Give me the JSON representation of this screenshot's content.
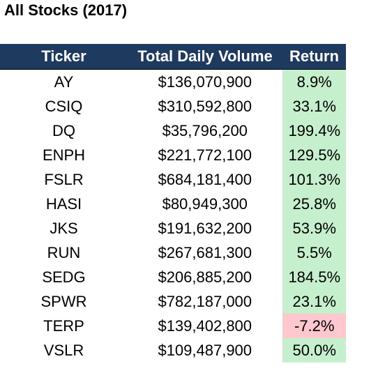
{
  "title": "All Stocks (2017)",
  "columns": [
    "Ticker",
    "Total Daily Volume",
    "Return"
  ],
  "colors": {
    "header_bg": "#1f3a5f",
    "header_text": "#ffffff",
    "positive_fill": "#c6efce",
    "negative_fill": "#ffc7ce"
  },
  "rows": [
    {
      "ticker": "AY",
      "volume": "$136,070,900",
      "return": "8.9%",
      "status": "positive"
    },
    {
      "ticker": "CSIQ",
      "volume": "$310,592,800",
      "return": "33.1%",
      "status": "positive"
    },
    {
      "ticker": "DQ",
      "volume": "$35,796,200",
      "return": "199.4%",
      "status": "positive"
    },
    {
      "ticker": "ENPH",
      "volume": "$221,772,100",
      "return": "129.5%",
      "status": "positive"
    },
    {
      "ticker": "FSLR",
      "volume": "$684,181,400",
      "return": "101.3%",
      "status": "positive"
    },
    {
      "ticker": "HASI",
      "volume": "$80,949,300",
      "return": "25.8%",
      "status": "positive"
    },
    {
      "ticker": "JKS",
      "volume": "$191,632,200",
      "return": "53.9%",
      "status": "positive"
    },
    {
      "ticker": "RUN",
      "volume": "$267,681,300",
      "return": "5.5%",
      "status": "positive"
    },
    {
      "ticker": "SEDG",
      "volume": "$206,885,200",
      "return": "184.5%",
      "status": "positive"
    },
    {
      "ticker": "SPWR",
      "volume": "$782,187,000",
      "return": "23.1%",
      "status": "positive"
    },
    {
      "ticker": "TERP",
      "volume": "$139,402,800",
      "return": "-7.2%",
      "status": "negative"
    },
    {
      "ticker": "VSLR",
      "volume": "$109,487,900",
      "return": "50.0%",
      "status": "positive"
    }
  ]
}
